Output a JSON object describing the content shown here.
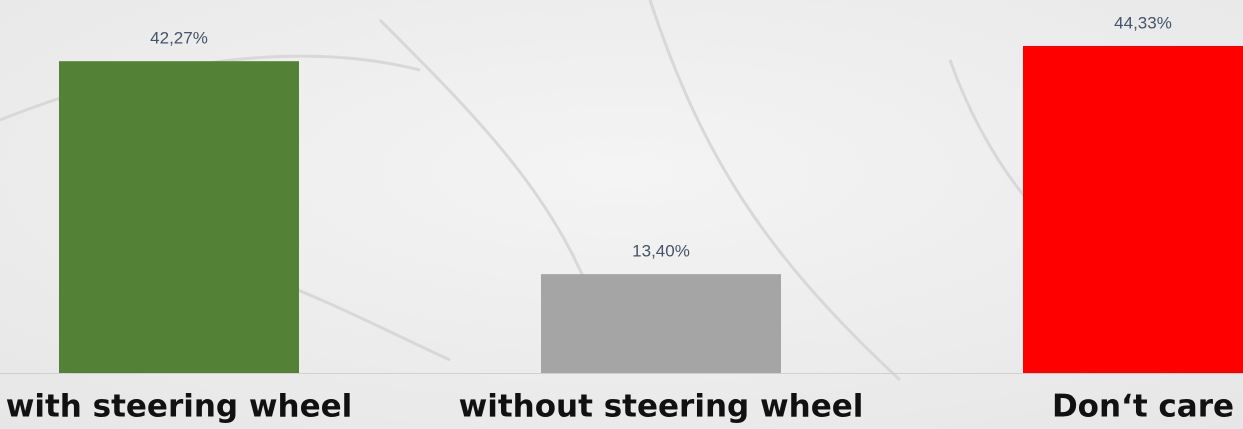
{
  "chart_data": {
    "type": "bar",
    "categories": [
      "with steering wheel",
      "without steering wheel",
      "Don‘t care"
    ],
    "values": [
      42.27,
      13.4,
      44.33
    ],
    "value_labels": [
      "42,27%",
      "13,40%",
      "44,33%"
    ],
    "colors": [
      "#538135",
      "#a5a5a5",
      "#ff0000"
    ]
  }
}
